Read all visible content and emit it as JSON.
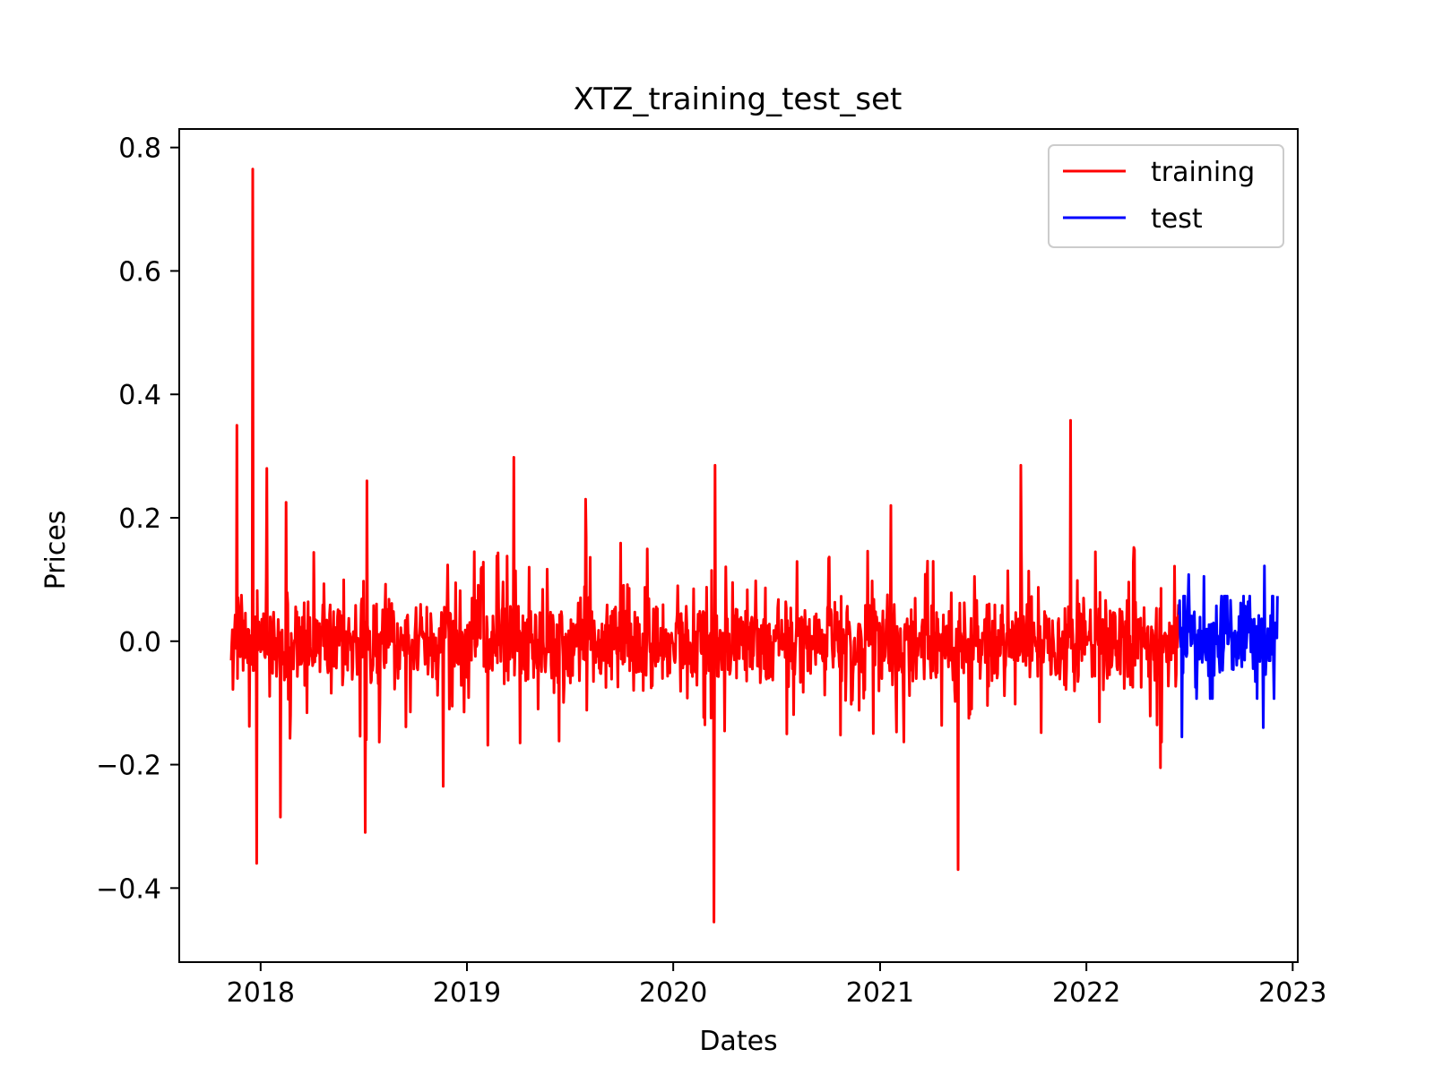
{
  "chart_data": {
    "type": "line",
    "title": "XTZ_training_test_set",
    "xlabel": "Dates",
    "ylabel": "Prices",
    "xlim": [
      "2017-08-10",
      "2023-01-10"
    ],
    "ylim": [
      -0.52,
      0.83
    ],
    "x_ticks": [
      "2018",
      "2019",
      "2020",
      "2021",
      "2022",
      "2023"
    ],
    "y_ticks": [
      {
        "value": 0.8,
        "label": "0.8"
      },
      {
        "value": 0.6,
        "label": "0.6"
      },
      {
        "value": 0.4,
        "label": "0.4"
      },
      {
        "value": 0.2,
        "label": "0.2"
      },
      {
        "value": 0.0,
        "label": "0.0"
      },
      {
        "value": -0.2,
        "label": "−0.2"
      },
      {
        "value": -0.4,
        "label": "−0.4"
      }
    ],
    "grid": false,
    "legend_position": "top-right",
    "series": [
      {
        "name": "training",
        "color": "#ff0000",
        "x_start": "2017-11-10",
        "x_end": "2022-06-13",
        "y_range": [
          -0.455,
          0.765
        ],
        "peaks": [
          {
            "x": "2017-11-20",
            "y": 0.35
          },
          {
            "x": "2017-12-18",
            "y": 0.765
          },
          {
            "x": "2017-12-25",
            "y": -0.36
          },
          {
            "x": "2018-01-12",
            "y": 0.28
          },
          {
            "x": "2018-02-05",
            "y": -0.285
          },
          {
            "x": "2018-02-15",
            "y": 0.225
          },
          {
            "x": "2018-07-05",
            "y": -0.31
          },
          {
            "x": "2018-07-08",
            "y": 0.26
          },
          {
            "x": "2018-11-20",
            "y": -0.235
          },
          {
            "x": "2019-03-25",
            "y": 0.298
          },
          {
            "x": "2019-07-30",
            "y": 0.23
          },
          {
            "x": "2020-03-13",
            "y": -0.455
          },
          {
            "x": "2020-03-15",
            "y": 0.285
          },
          {
            "x": "2021-01-20",
            "y": 0.22
          },
          {
            "x": "2021-05-19",
            "y": -0.37
          },
          {
            "x": "2021-09-07",
            "y": 0.285
          },
          {
            "x": "2021-12-04",
            "y": 0.358
          },
          {
            "x": "2022-05-12",
            "y": -0.205
          }
        ]
      },
      {
        "name": "test",
        "color": "#0000ff",
        "x_start": "2022-06-14",
        "x_end": "2022-12-05",
        "y_range": [
          -0.155,
          0.122
        ],
        "peaks": [
          {
            "x": "2022-06-19",
            "y": -0.155
          },
          {
            "x": "2022-07-01",
            "y": 0.108
          },
          {
            "x": "2022-07-28",
            "y": 0.105
          },
          {
            "x": "2022-11-12",
            "y": 0.122
          },
          {
            "x": "2022-11-10",
            "y": -0.14
          }
        ]
      }
    ]
  }
}
